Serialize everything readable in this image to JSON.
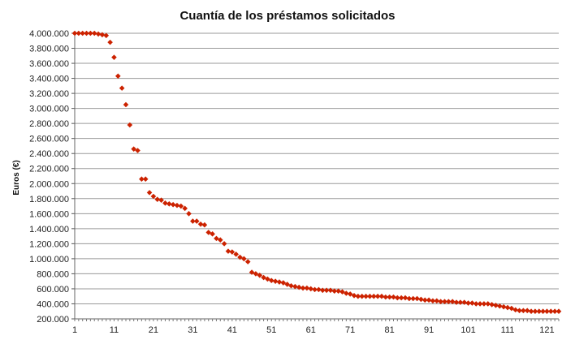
{
  "chart_data": {
    "type": "scatter",
    "title": "Cuantía de los préstamos solicitados",
    "xlabel": "",
    "ylabel": "Euros (€)",
    "xlim": [
      1,
      124
    ],
    "ylim": [
      200000,
      4000000
    ],
    "xticks": [
      1,
      11,
      21,
      31,
      41,
      51,
      61,
      71,
      81,
      91,
      101,
      111,
      121
    ],
    "yticks": [
      200000,
      400000,
      600000,
      800000,
      1000000,
      1200000,
      1400000,
      1600000,
      1800000,
      2000000,
      2200000,
      2400000,
      2600000,
      2800000,
      3000000,
      3200000,
      3400000,
      3600000,
      3800000,
      4000000
    ],
    "ytick_labels": [
      "200.000",
      "400.000",
      "600.000",
      "800.000",
      "1.000.000",
      "1.200.000",
      "1.400.000",
      "1.600.000",
      "1.800.000",
      "2.000.000",
      "2.200.000",
      "2.400.000",
      "2.600.000",
      "2.800.000",
      "3.000.000",
      "3.200.000",
      "3.400.000",
      "3.600.000",
      "3.800.000",
      "4.000.000"
    ],
    "grid": true,
    "marker_color": "#CC2200",
    "marker": "diamond",
    "series": [
      {
        "x": [
          1,
          2,
          3,
          4,
          5,
          6,
          7,
          8,
          9,
          10,
          11,
          12,
          13,
          14,
          15,
          16,
          17,
          18,
          19,
          20,
          21,
          22,
          23,
          24,
          25,
          26,
          27,
          28,
          29,
          30,
          31,
          32,
          33,
          34,
          35,
          36,
          37,
          38,
          39,
          40,
          41,
          42,
          43,
          44,
          45,
          46,
          47,
          48,
          49,
          50,
          51,
          52,
          53,
          54,
          55,
          56,
          57,
          58,
          59,
          60,
          61,
          62,
          63,
          64,
          65,
          66,
          67,
          68,
          69,
          70,
          71,
          72,
          73,
          74,
          75,
          76,
          77,
          78,
          79,
          80,
          81,
          82,
          83,
          84,
          85,
          86,
          87,
          88,
          89,
          90,
          91,
          92,
          93,
          94,
          95,
          96,
          97,
          98,
          99,
          100,
          101,
          102,
          103,
          104,
          105,
          106,
          107,
          108,
          109,
          110,
          111,
          112,
          113,
          114,
          115,
          116,
          117,
          118,
          119,
          120,
          121,
          122,
          123,
          124
        ],
        "values": [
          4000000,
          4000000,
          4000000,
          4000000,
          4000000,
          4000000,
          3990000,
          3980000,
          3970000,
          3880000,
          3680000,
          3430000,
          3270000,
          3050000,
          2780000,
          2460000,
          2440000,
          2060000,
          2060000,
          1880000,
          1830000,
          1790000,
          1780000,
          1740000,
          1730000,
          1720000,
          1710000,
          1700000,
          1670000,
          1600000,
          1500000,
          1500000,
          1460000,
          1450000,
          1350000,
          1330000,
          1270000,
          1250000,
          1200000,
          1100000,
          1090000,
          1060000,
          1020000,
          1000000,
          960000,
          820000,
          800000,
          780000,
          750000,
          730000,
          710000,
          700000,
          690000,
          680000,
          660000,
          640000,
          630000,
          620000,
          610000,
          610000,
          600000,
          590000,
          590000,
          580000,
          580000,
          580000,
          570000,
          570000,
          560000,
          540000,
          530000,
          510000,
          500000,
          500000,
          500000,
          500000,
          500000,
          500000,
          500000,
          490000,
          490000,
          490000,
          480000,
          480000,
          480000,
          470000,
          470000,
          470000,
          460000,
          450000,
          450000,
          440000,
          440000,
          430000,
          430000,
          430000,
          430000,
          420000,
          420000,
          420000,
          410000,
          410000,
          400000,
          400000,
          400000,
          400000,
          390000,
          380000,
          370000,
          360000,
          350000,
          340000,
          320000,
          310000,
          310000,
          310000,
          300000,
          300000,
          300000,
          300000,
          300000,
          300000,
          300000,
          300000
        ]
      }
    ]
  }
}
